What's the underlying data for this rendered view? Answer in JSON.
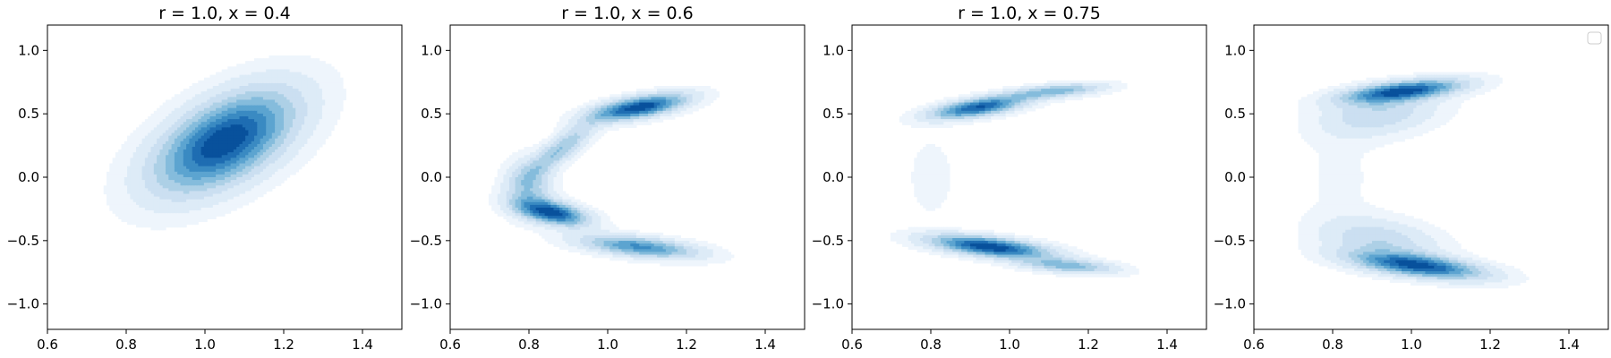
{
  "chart_data": [
    {
      "type": "contour",
      "title": "r = 1.0, x = 0.4",
      "xlim": [
        0.6,
        1.5
      ],
      "ylim": [
        -1.2,
        1.2
      ],
      "xticks": [
        0.6,
        0.8,
        1.0,
        1.2,
        1.4
      ],
      "yticks": [
        -1.0,
        -0.5,
        0.0,
        0.5,
        1.0
      ],
      "xtick_labels": [
        "0.6",
        "0.8",
        "1.0",
        "1.2",
        "1.4"
      ],
      "ytick_labels": [
        "−1.0",
        "−0.5",
        "0.0",
        "0.5",
        "1.0"
      ],
      "grid": false,
      "colormap": "Blues",
      "density_modes": [
        {
          "x": 1.05,
          "y": 0.28,
          "sx": 0.12,
          "sy": 0.27,
          "rho": 0.55,
          "w": 1.0
        }
      ]
    },
    {
      "type": "contour",
      "title": "r = 1.0, x = 0.6",
      "xlim": [
        0.6,
        1.5
      ],
      "ylim": [
        -1.2,
        1.2
      ],
      "xticks": [
        0.6,
        0.8,
        1.0,
        1.2,
        1.4
      ],
      "yticks": [
        -1.0,
        -0.5,
        0.0,
        0.5,
        1.0
      ],
      "xtick_labels": [
        "0.6",
        "0.8",
        "1.0",
        "1.2",
        "1.4"
      ],
      "ytick_labels": [
        "−1.0",
        "−0.5",
        "0.0",
        "0.5",
        "1.0"
      ],
      "grid": false,
      "colormap": "Blues",
      "density_modes": [
        {
          "x": 1.08,
          "y": 0.55,
          "sx": 0.08,
          "sy": 0.07,
          "rho": 0.6,
          "w": 1.0
        },
        {
          "x": 0.88,
          "y": 0.22,
          "sx": 0.06,
          "sy": 0.15,
          "rho": 0.85,
          "w": 0.45
        },
        {
          "x": 0.8,
          "y": -0.08,
          "sx": 0.04,
          "sy": 0.14,
          "rho": 0.0,
          "w": 0.4
        },
        {
          "x": 0.86,
          "y": -0.28,
          "sx": 0.06,
          "sy": 0.07,
          "rho": -0.5,
          "w": 0.95
        },
        {
          "x": 1.08,
          "y": -0.55,
          "sx": 0.1,
          "sy": 0.06,
          "rho": -0.5,
          "w": 0.7
        }
      ]
    },
    {
      "type": "contour",
      "title": "r = 1.0, x = 0.75",
      "xlim": [
        0.6,
        1.5
      ],
      "ylim": [
        -1.2,
        1.2
      ],
      "xticks": [
        0.6,
        0.8,
        1.0,
        1.2,
        1.4
      ],
      "yticks": [
        -1.0,
        -0.5,
        0.0,
        0.5,
        1.0
      ],
      "xtick_labels": [
        "0.6",
        "0.8",
        "1.0",
        "1.2",
        "1.4"
      ],
      "ytick_labels": [
        "−1.0",
        "−0.5",
        "0.0",
        "0.5",
        "1.0"
      ],
      "grid": false,
      "colormap": "Blues",
      "density_modes": [
        {
          "x": 0.92,
          "y": 0.55,
          "sx": 0.08,
          "sy": 0.06,
          "rho": 0.6,
          "w": 0.9
        },
        {
          "x": 1.12,
          "y": 0.68,
          "sx": 0.08,
          "sy": 0.04,
          "rho": 0.5,
          "w": 0.5
        },
        {
          "x": 0.95,
          "y": -0.55,
          "sx": 0.1,
          "sy": 0.06,
          "rho": -0.55,
          "w": 1.0
        },
        {
          "x": 1.15,
          "y": -0.7,
          "sx": 0.08,
          "sy": 0.04,
          "rho": -0.4,
          "w": 0.5
        },
        {
          "x": 0.8,
          "y": 0.0,
          "sx": 0.04,
          "sy": 0.22,
          "rho": 0.0,
          "w": 0.08
        }
      ]
    },
    {
      "type": "contour",
      "title": "",
      "xlim": [
        0.6,
        1.5
      ],
      "ylim": [
        -1.2,
        1.2
      ],
      "xticks": [
        0.6,
        0.8,
        1.0,
        1.2,
        1.4
      ],
      "yticks": [
        -1.0,
        -0.5,
        0.0,
        0.5,
        1.0
      ],
      "xtick_labels": [
        "0.6",
        "0.8",
        "1.0",
        "1.2",
        "1.4"
      ],
      "ytick_labels": [
        "−1.0",
        "−0.5",
        "0.0",
        "0.5",
        "1.0"
      ],
      "grid": false,
      "colormap": "Blues",
      "legend": "top-right",
      "legend_entries": [],
      "density_modes": [
        {
          "x": 0.98,
          "y": 0.68,
          "sx": 0.1,
          "sy": 0.06,
          "rho": 0.55,
          "w": 1.0
        },
        {
          "x": 0.92,
          "y": 0.5,
          "sx": 0.1,
          "sy": 0.12,
          "rho": 0.3,
          "w": 0.35
        },
        {
          "x": 1.02,
          "y": -0.7,
          "sx": 0.11,
          "sy": 0.07,
          "rho": -0.55,
          "w": 1.0
        },
        {
          "x": 0.92,
          "y": -0.5,
          "sx": 0.1,
          "sy": 0.12,
          "rho": -0.3,
          "w": 0.35
        },
        {
          "x": 0.82,
          "y": 0.0,
          "sx": 0.07,
          "sy": 0.3,
          "rho": 0.0,
          "w": 0.06
        }
      ]
    }
  ]
}
